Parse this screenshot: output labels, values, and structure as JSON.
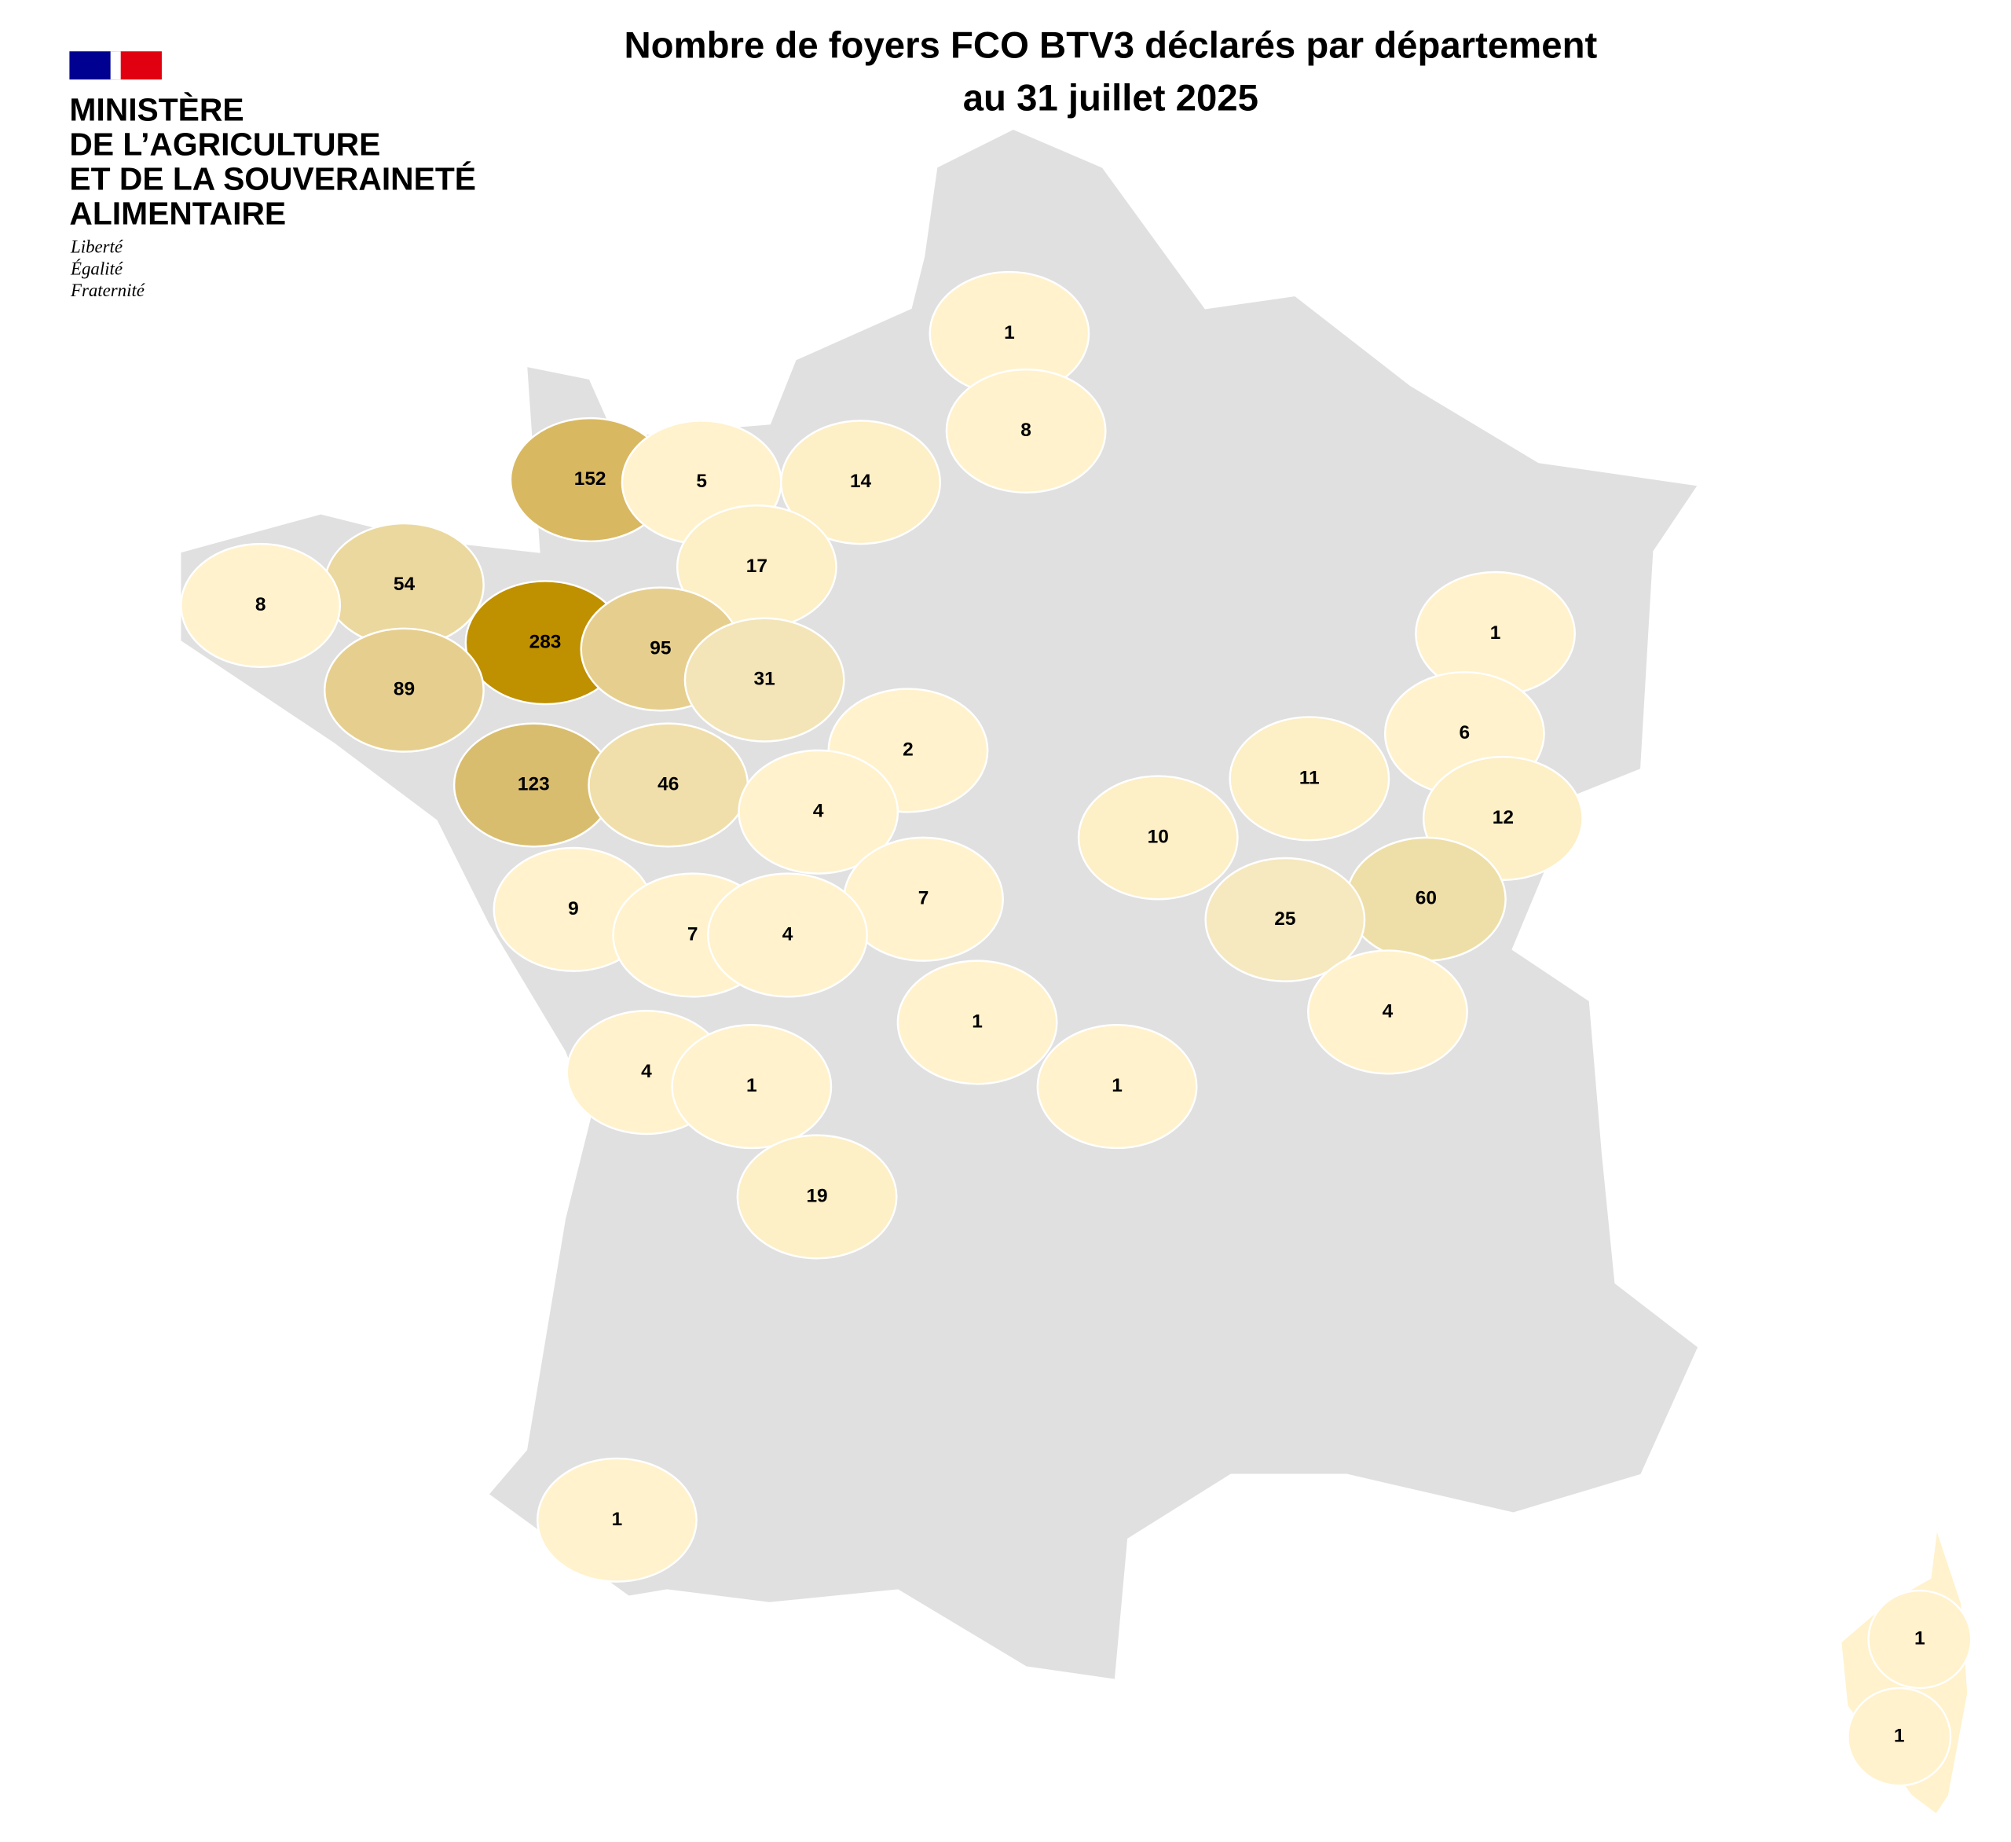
{
  "header": {
    "title": [
      "Nombre de foyers FCO BTV3 déclarés par département",
      "au 31 juillet 2025"
    ]
  },
  "logo": {
    "ministry": [
      "MINISTÈRE",
      "DE L’AGRICULTURE",
      "ET DE LA SOUVERAINETÉ",
      "ALIMENTAIRE"
    ],
    "motto": [
      "Liberté",
      "Égalité",
      "Fraternité"
    ]
  },
  "departments": [
    {
      "value": 1,
      "color": "#fff2cc"
    },
    {
      "value": 8,
      "color": "#fff2cc"
    },
    {
      "value": 152,
      "color": "#d9b862"
    },
    {
      "value": 5,
      "color": "#fff2cc"
    },
    {
      "value": 14,
      "color": "#fdefc6"
    },
    {
      "value": 54,
      "color": "#ebd89f"
    },
    {
      "value": 8,
      "color": "#fff2cc"
    },
    {
      "value": 17,
      "color": "#fdefc6"
    },
    {
      "value": 283,
      "color": "#bf9000"
    },
    {
      "value": 95,
      "color": "#e6cf8e"
    },
    {
      "value": 89,
      "color": "#e6cf8e"
    },
    {
      "value": 31,
      "color": "#f3e5b8"
    },
    {
      "value": 1,
      "color": "#fff2cc"
    },
    {
      "value": 6,
      "color": "#fff2cc"
    },
    {
      "value": 2,
      "color": "#fff2cc"
    },
    {
      "value": 11,
      "color": "#fdefc6"
    },
    {
      "value": 123,
      "color": "#d9bd6e"
    },
    {
      "value": 46,
      "color": "#f0dfaa"
    },
    {
      "value": 4,
      "color": "#fff2cc"
    },
    {
      "value": 12,
      "color": "#fdefc6"
    },
    {
      "value": 10,
      "color": "#fdefc6"
    },
    {
      "value": 60,
      "color": "#eedfa8"
    },
    {
      "value": 7,
      "color": "#fff2cc"
    },
    {
      "value": 9,
      "color": "#fff2cc"
    },
    {
      "value": 7,
      "color": "#fff2cc"
    },
    {
      "value": 4,
      "color": "#fff2cc"
    },
    {
      "value": 25,
      "color": "#f6e8bf"
    },
    {
      "value": 4,
      "color": "#fff2cc"
    },
    {
      "value": 1,
      "color": "#fff2cc"
    },
    {
      "value": 4,
      "color": "#fff2cc"
    },
    {
      "value": 1,
      "color": "#fff2cc"
    },
    {
      "value": 1,
      "color": "#fff2cc"
    },
    {
      "value": 19,
      "color": "#fdefc6"
    },
    {
      "value": 1,
      "color": "#fff2cc"
    },
    {
      "value": 1,
      "color": "#fff2cc"
    },
    {
      "value": 1,
      "color": "#fff2cc"
    }
  ]
}
